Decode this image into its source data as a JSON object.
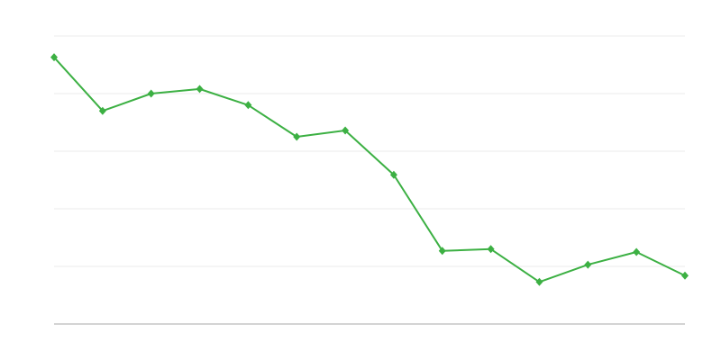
{
  "chart_data": {
    "type": "line",
    "title": "",
    "xlabel": "",
    "ylabel": "",
    "x": [
      1,
      2,
      3,
      4,
      5,
      6,
      7,
      8,
      9,
      10,
      11,
      12,
      13,
      14
    ],
    "series": [
      {
        "values": [
          4.63,
          3.7,
          4.0,
          4.08,
          3.8,
          3.25,
          3.36,
          2.59,
          1.27,
          1.3,
          0.73,
          1.03,
          1.25,
          0.84
        ],
        "color": "#3cb043",
        "marker": "diamond"
      }
    ],
    "ylim": [
      0,
      5
    ],
    "yticks": [
      1,
      2,
      3,
      4,
      5
    ],
    "grid": true,
    "grid_color": "#ebebeb",
    "baseline_color": "#aaaaaa",
    "legend": "none"
  }
}
